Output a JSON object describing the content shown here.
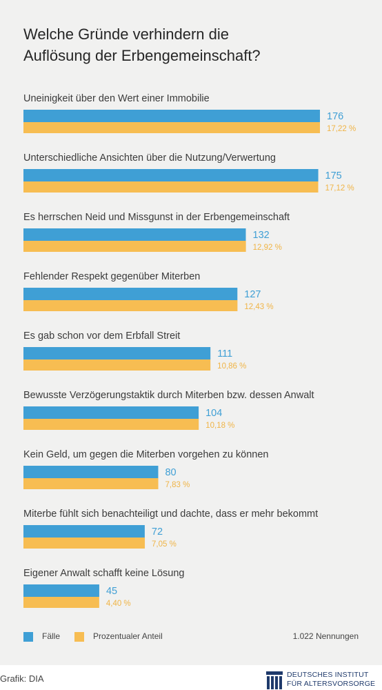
{
  "title_lines": [
    "Welche Gründe verhindern die",
    "Auflösung der Erbengemeinschaft?"
  ],
  "colors": {
    "faelle": "#3f9fd5",
    "anteil": "#f7bd52",
    "pct_text": "#f0b446",
    "panel": "#f1f1f0"
  },
  "chart_data": {
    "type": "bar",
    "orientation": "horizontal",
    "title": "Welche Gründe verhindern die Auflösung der Erbengemeinschaft?",
    "categories": [
      "Uneinigkeit über den Wert einer Immobilie",
      "Unterschiedliche Ansichten über die Nutzung/Verwertung",
      "Es herrschen Neid und Missgunst in der Erbengemeinschaft",
      "Fehlender Respekt gegenüber Miterben",
      "Es gab schon vor dem Erbfall Streit",
      "Bewusste Verzögerungstaktik durch Miterben bzw. dessen Anwalt",
      "Kein Geld, um gegen die Miterben vorgehen zu können",
      "Miterbe fühlt sich benachteiligt und dachte, dass er mehr bekommt",
      "Eigener Anwalt schafft keine Lösung"
    ],
    "series": [
      {
        "name": "Fälle",
        "values": [
          176,
          175,
          132,
          127,
          111,
          104,
          80,
          72,
          45
        ]
      },
      {
        "name": "Prozentualer Anteil",
        "values": [
          17.22,
          17.12,
          12.92,
          12.43,
          10.86,
          10.18,
          7.83,
          7.05,
          4.4
        ]
      }
    ],
    "value_labels": [
      "176",
      "175",
      "132",
      "127",
      "111",
      "104",
      "80",
      "72",
      "45"
    ],
    "percent_labels": [
      "17,22 %",
      "17,12 %",
      "12,92 %",
      "12,43 %",
      "10,86 %",
      "10,18 %",
      "7,83 %",
      "7,05 %",
      "4,40 %"
    ],
    "legend": [
      "Fälle",
      "Prozentualer Anteil"
    ],
    "legend_position": "bottom-left",
    "total_note": "1.022 Nennungen",
    "grid": false
  },
  "footer": {
    "credit": "Grafik: DIA",
    "logo_line1": "DEUTSCHES INSTITUT",
    "logo_line2": "FÜR ALTERSVORSORGE"
  }
}
